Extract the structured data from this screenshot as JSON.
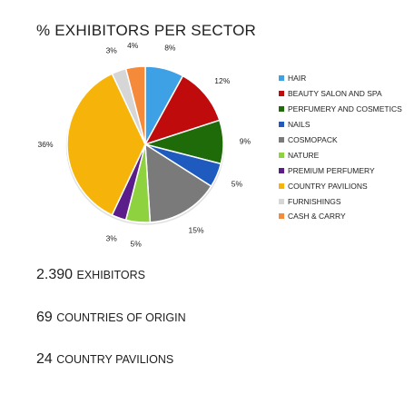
{
  "chart_data": {
    "type": "pie",
    "title": "% EXHIBITORS PER SECTOR",
    "slices": [
      {
        "label": "HAIR",
        "value": 8,
        "display": "8%",
        "color": "#3ea1e6"
      },
      {
        "label": "BEAUTY SALON AND SPA",
        "value": 12,
        "display": "12%",
        "color": "#bf0b0b"
      },
      {
        "label": "PERFUMERY AND COSMETICS",
        "value": 9,
        "display": "9%",
        "color": "#1f6b09"
      },
      {
        "label": "NAILS",
        "value": 5,
        "display": "5%",
        "color": "#1f5bbe"
      },
      {
        "label": "COSMOPACK",
        "value": 15,
        "display": "15%",
        "color": "#7a7a7a"
      },
      {
        "label": "NATURE",
        "value": 5,
        "display": "5%",
        "color": "#8ed33f"
      },
      {
        "label": "PREMIUM PERFUMERY",
        "value": 3,
        "display": "3%",
        "color": "#5a1d8a"
      },
      {
        "label": "COUNTRY PAVILIONS",
        "value": 36,
        "display": "36%",
        "color": "#f6b40a"
      },
      {
        "label": "FURNISHINGS",
        "value": 3,
        "display": "3%",
        "color": "#d6d6d6"
      },
      {
        "label": "CASH & CARRY",
        "value": 4,
        "display": "4%",
        "color": "#f58a3a"
      }
    ],
    "legend_position": "right",
    "start_angle_deg": 0,
    "direction": "clockwise"
  },
  "stats": [
    {
      "number": "2.390",
      "label": "EXHIBITORS"
    },
    {
      "number": "69",
      "label": "COUNTRIES OF ORIGIN"
    },
    {
      "number": "24",
      "label": "COUNTRY PAVILIONS"
    }
  ]
}
